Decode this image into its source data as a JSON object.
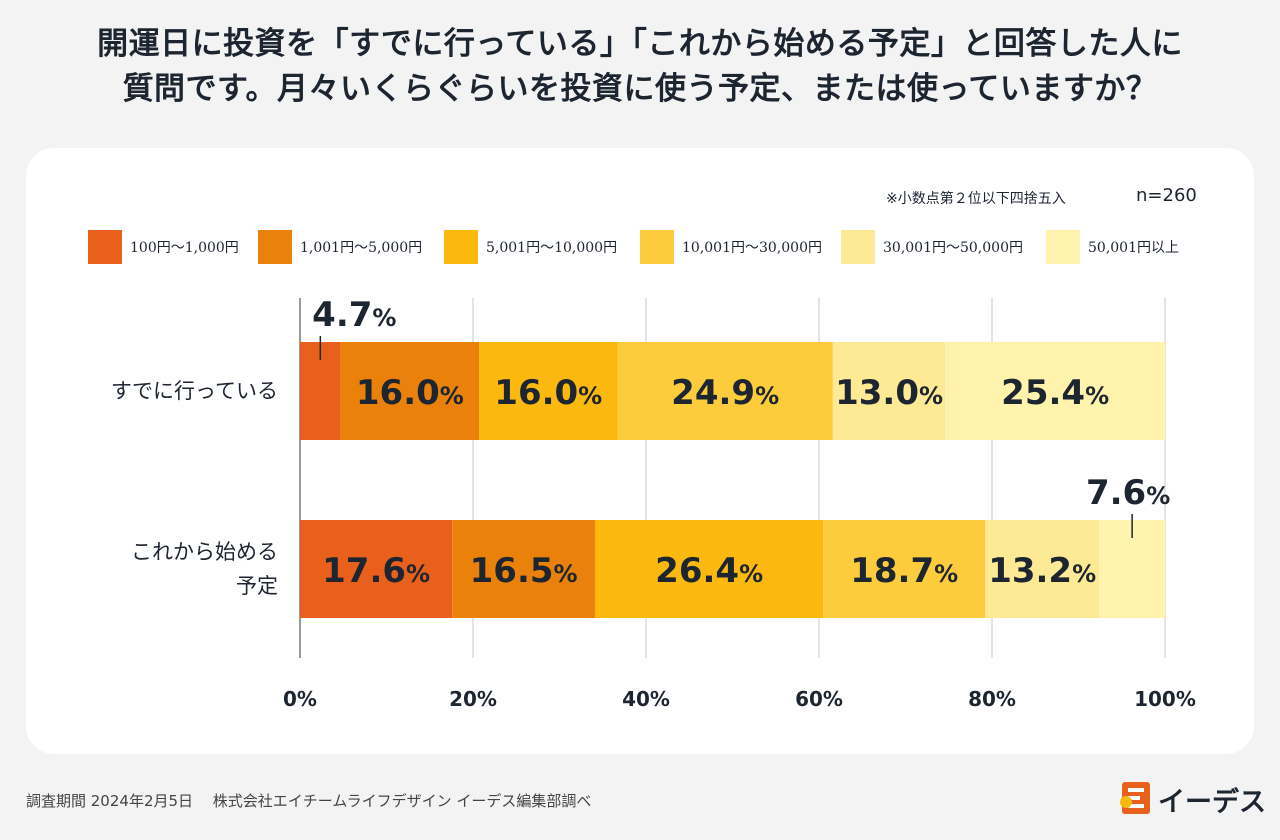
{
  "title_line1": "開運日に投資を「すでに行っている」「これから始める予定」と回答した人に",
  "title_line2": "質問です。月々いくらぐらいを投資に使う予定、または使っていますか？",
  "note": "※小数点第２位以下四捨五入",
  "sample": "n=260",
  "footer": "調査期間 2024年2月5日　 株式会社エイチームライフデザイン イーデス編集部調べ",
  "logo_text": "イーデス",
  "logo_icon": "edes-logo-icon",
  "chart_data": {
    "type": "bar",
    "orientation": "horizontal",
    "stacked": true,
    "title": "月々いくらぐらいを投資に使う予定、または使っていますか？",
    "categories": [
      "すでに行っている",
      "これから始める予定"
    ],
    "category_lines": [
      [
        "すでに行っている"
      ],
      [
        "これから始める",
        "予定"
      ]
    ],
    "series": [
      {
        "name": "100円〜1,000円",
        "color": "#e8601c",
        "values": [
          4.7,
          17.6
        ]
      },
      {
        "name": "1,001円〜5,000円",
        "color": "#e9810a",
        "values": [
          16.0,
          16.5
        ]
      },
      {
        "name": "5,001円〜10,000円",
        "color": "#fbb80f",
        "values": [
          16.0,
          26.4
        ]
      },
      {
        "name": "10,001円〜30,000円",
        "color": "#fccc3c",
        "values": [
          24.9,
          18.7
        ]
      },
      {
        "name": "30,001円〜50,000円",
        "color": "#feea94",
        "values": [
          13.0,
          13.2
        ]
      },
      {
        "name": "50,001円以上",
        "color": "#fff3ad",
        "values": [
          25.4,
          7.6
        ]
      }
    ],
    "unit": "%",
    "xlim": [
      0,
      100
    ],
    "xticks": [
      0,
      20,
      40,
      60,
      80,
      100
    ],
    "xtick_labels": [
      "0%",
      "20%",
      "40%",
      "60%",
      "80%",
      "100%"
    ],
    "grid": true,
    "legend": "top",
    "callouts": [
      {
        "category": 0,
        "series": 0,
        "position": "above"
      },
      {
        "category": 1,
        "series": 5,
        "position": "above"
      }
    ]
  }
}
